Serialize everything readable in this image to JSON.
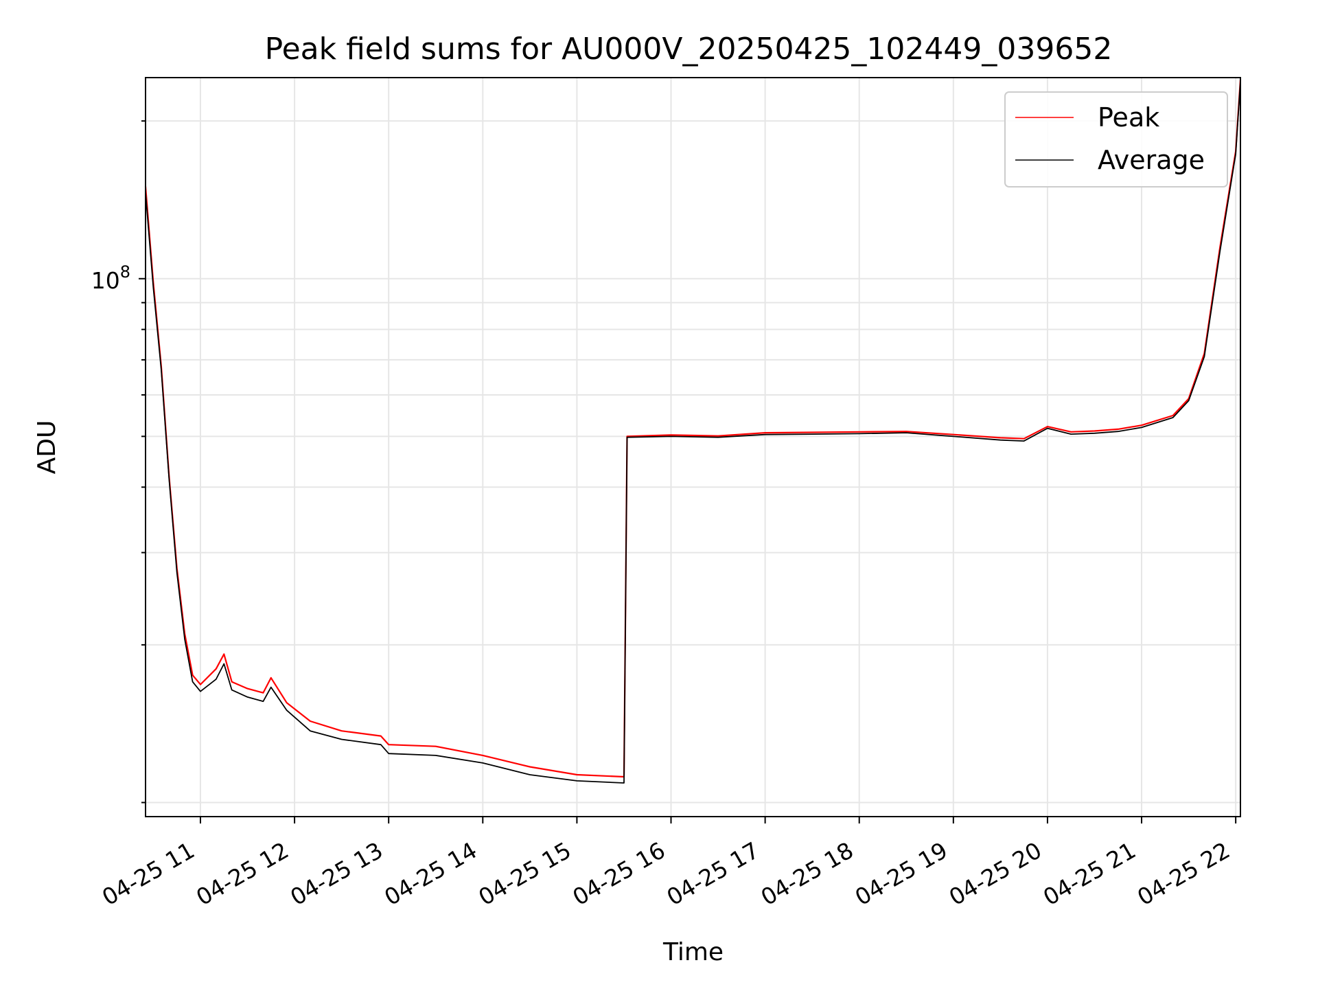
{
  "chart_data": {
    "type": "line",
    "title": "Peak field sums for AU000V_20250425_102449_039652",
    "xlabel": "Time",
    "ylabel": "ADU",
    "y_scale": "log",
    "xlim": [
      "04-25 10:25",
      "04-25 22:03"
    ],
    "ylim": [
      9400000,
      242000000
    ],
    "x_tick_labels": [
      "04-25 11",
      "04-25 12",
      "04-25 13",
      "04-25 14",
      "04-25 15",
      "04-25 16",
      "04-25 17",
      "04-25 18",
      "04-25 19",
      "04-25 20",
      "04-25 21",
      "04-25 22"
    ],
    "y_tick_labels": [
      {
        "value": 100000000,
        "base": "10",
        "exp": "8"
      }
    ],
    "grid": true,
    "legend_position": "top-right",
    "series": [
      {
        "name": "Peak",
        "color": "#ff0000",
        "points": [
          [
            "04-25 10:25",
            150000000
          ],
          [
            "04-25 10:30",
            98000000
          ],
          [
            "04-25 10:35",
            68000000
          ],
          [
            "04-25 10:40",
            42000000
          ],
          [
            "04-25 10:45",
            28000000
          ],
          [
            "04-25 10:50",
            21000000
          ],
          [
            "04-25 10:55",
            17500000
          ],
          [
            "04-25 11:00",
            16800000
          ],
          [
            "04-25 11:10",
            18000000
          ],
          [
            "04-25 11:15",
            19200000
          ],
          [
            "04-25 11:20",
            17000000
          ],
          [
            "04-25 11:30",
            16500000
          ],
          [
            "04-25 11:40",
            16200000
          ],
          [
            "04-25 11:45",
            17300000
          ],
          [
            "04-25 11:55",
            15500000
          ],
          [
            "04-25 12:10",
            14300000
          ],
          [
            "04-25 12:30",
            13700000
          ],
          [
            "04-25 12:55",
            13400000
          ],
          [
            "04-25 13:00",
            12900000
          ],
          [
            "04-25 13:30",
            12800000
          ],
          [
            "04-25 14:00",
            12300000
          ],
          [
            "04-25 14:30",
            11700000
          ],
          [
            "04-25 15:00",
            11300000
          ],
          [
            "04-25 15:30",
            11200000
          ],
          [
            "04-25 15:32",
            50000000
          ],
          [
            "04-25 16:00",
            50300000
          ],
          [
            "04-25 16:30",
            50100000
          ],
          [
            "04-25 17:00",
            50800000
          ],
          [
            "04-25 17:30",
            50900000
          ],
          [
            "04-25 18:00",
            51000000
          ],
          [
            "04-25 18:30",
            51100000
          ],
          [
            "04-25 19:00",
            50400000
          ],
          [
            "04-25 19:30",
            49700000
          ],
          [
            "04-25 19:45",
            49500000
          ],
          [
            "04-25 20:00",
            52200000
          ],
          [
            "04-25 20:15",
            51000000
          ],
          [
            "04-25 20:30",
            51200000
          ],
          [
            "04-25 20:45",
            51600000
          ],
          [
            "04-25 21:00",
            52500000
          ],
          [
            "04-25 21:20",
            54800000
          ],
          [
            "04-25 21:30",
            59000000
          ],
          [
            "04-25 21:40",
            72000000
          ],
          [
            "04-25 21:50",
            115000000
          ],
          [
            "04-25 22:00",
            175000000
          ],
          [
            "04-25 22:03",
            240000000
          ]
        ]
      },
      {
        "name": "Average",
        "color": "#000000",
        "points": [
          [
            "04-25 10:25",
            146000000
          ],
          [
            "04-25 10:30",
            96000000
          ],
          [
            "04-25 10:35",
            67000000
          ],
          [
            "04-25 10:40",
            41500000
          ],
          [
            "04-25 10:45",
            27500000
          ],
          [
            "04-25 10:50",
            20500000
          ],
          [
            "04-25 10:55",
            17000000
          ],
          [
            "04-25 11:00",
            16300000
          ],
          [
            "04-25 11:10",
            17200000
          ],
          [
            "04-25 11:15",
            18400000
          ],
          [
            "04-25 11:20",
            16400000
          ],
          [
            "04-25 11:30",
            15900000
          ],
          [
            "04-25 11:40",
            15600000
          ],
          [
            "04-25 11:45",
            16600000
          ],
          [
            "04-25 11:55",
            15000000
          ],
          [
            "04-25 12:10",
            13700000
          ],
          [
            "04-25 12:30",
            13200000
          ],
          [
            "04-25 12:55",
            12900000
          ],
          [
            "04-25 13:00",
            12400000
          ],
          [
            "04-25 13:30",
            12300000
          ],
          [
            "04-25 14:00",
            11900000
          ],
          [
            "04-25 14:30",
            11300000
          ],
          [
            "04-25 15:00",
            11000000
          ],
          [
            "04-25 15:30",
            10900000
          ],
          [
            "04-25 15:32",
            49800000
          ],
          [
            "04-25 16:00",
            50000000
          ],
          [
            "04-25 16:30",
            49800000
          ],
          [
            "04-25 17:00",
            50400000
          ],
          [
            "04-25 17:30",
            50500000
          ],
          [
            "04-25 18:00",
            50600000
          ],
          [
            "04-25 18:30",
            50800000
          ],
          [
            "04-25 19:00",
            50000000
          ],
          [
            "04-25 19:30",
            49200000
          ],
          [
            "04-25 19:45",
            49000000
          ],
          [
            "04-25 20:00",
            51800000
          ],
          [
            "04-25 20:15",
            50500000
          ],
          [
            "04-25 20:30",
            50700000
          ],
          [
            "04-25 20:45",
            51100000
          ],
          [
            "04-25 21:00",
            52000000
          ],
          [
            "04-25 21:20",
            54300000
          ],
          [
            "04-25 21:30",
            58500000
          ],
          [
            "04-25 21:40",
            71000000
          ],
          [
            "04-25 21:50",
            113000000
          ],
          [
            "04-25 22:00",
            173000000
          ],
          [
            "04-25 22:03",
            238000000
          ]
        ]
      }
    ]
  }
}
